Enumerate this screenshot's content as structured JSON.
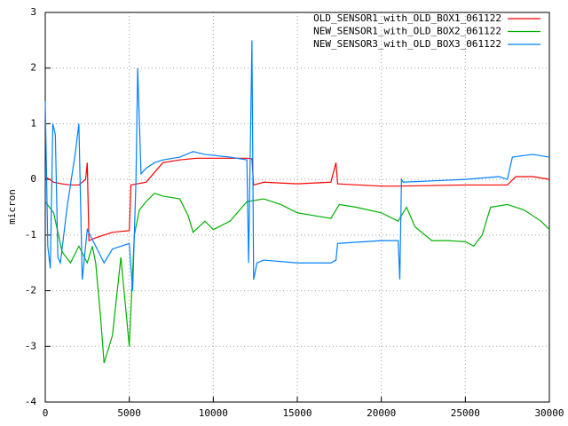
{
  "chart_data": {
    "type": "line",
    "ylabel": "micron",
    "xlim": [
      0,
      30000
    ],
    "xticks": [
      0,
      5000,
      10000,
      15000,
      20000,
      25000,
      30000
    ],
    "ylim": [
      -4,
      3
    ],
    "yticks": [
      -4,
      -3,
      -2,
      -1,
      0,
      1,
      2,
      3
    ],
    "grid": true,
    "legend": "top-right",
    "series": [
      {
        "name": "OLD_SENSOR1_with_OLD_BOX1_061122",
        "color": "#ff0000",
        "x": [
          0,
          500,
          1000,
          1500,
          2000,
          2400,
          2500,
          2600,
          3000,
          3500,
          4000,
          5000,
          5100,
          6000,
          7000,
          8000,
          9000,
          10000,
          11000,
          12000,
          12300,
          12400,
          13000,
          15000,
          17000,
          17300,
          17400,
          20000,
          21000,
          25000,
          27500,
          28000,
          29000,
          30000
        ],
        "values": [
          0.05,
          -0.05,
          -0.08,
          -0.1,
          -0.1,
          0.0,
          0.3,
          -1.1,
          -1.05,
          -1.0,
          -0.95,
          -0.92,
          -0.1,
          -0.05,
          0.3,
          0.35,
          0.38,
          0.38,
          0.38,
          0.38,
          0.37,
          -0.1,
          -0.05,
          -0.08,
          -0.05,
          0.3,
          -0.08,
          -0.12,
          -0.12,
          -0.1,
          -0.1,
          0.05,
          0.05,
          0.0
        ]
      },
      {
        "name": "NEW_SENSOR1_with_OLD_BOX2_061122",
        "color": "#00b000",
        "x": [
          0,
          500,
          1000,
          1500,
          2000,
          2500,
          2800,
          3000,
          3300,
          3500,
          4000,
          4500,
          5000,
          5300,
          5600,
          6000,
          6500,
          7000,
          8000,
          8500,
          8800,
          9500,
          10000,
          11000,
          12000,
          13000,
          14000,
          15000,
          16000,
          17000,
          17500,
          18500,
          20000,
          21000,
          21500,
          22000,
          23000,
          24000,
          25000,
          25500,
          26000,
          26500,
          27500,
          28500,
          29500,
          30000
        ],
        "values": [
          -0.4,
          -0.6,
          -1.3,
          -1.5,
          -1.2,
          -1.5,
          -1.2,
          -1.5,
          -2.5,
          -3.3,
          -2.8,
          -1.4,
          -3.0,
          -1.0,
          -0.55,
          -0.4,
          -0.25,
          -0.3,
          -0.35,
          -0.65,
          -0.95,
          -0.75,
          -0.9,
          -0.75,
          -0.4,
          -0.35,
          -0.45,
          -0.6,
          -0.65,
          -0.7,
          -0.45,
          -0.5,
          -0.6,
          -0.75,
          -0.5,
          -0.85,
          -1.1,
          -1.1,
          -1.12,
          -1.2,
          -1.0,
          -0.5,
          -0.45,
          -0.55,
          -0.75,
          -0.9
        ]
      },
      {
        "name": "NEW_SENSOR3_with_OLD_BOX3_061122",
        "color": "#0080ff",
        "x": [
          0,
          150,
          300,
          450,
          600,
          750,
          900,
          1300,
          1800,
          2000,
          2200,
          2500,
          3000,
          3500,
          4000,
          5000,
          5200,
          5400,
          5500,
          5700,
          6000,
          6500,
          7000,
          8000,
          8800,
          9500,
          11000,
          12000,
          12100,
          12300,
          12400,
          12600,
          13000,
          15000,
          17000,
          17300,
          17400,
          20000,
          21000,
          21100,
          21200,
          21300,
          25000,
          27000,
          27500,
          27800,
          29000,
          30000
        ],
        "values": [
          1.4,
          -1.2,
          -1.6,
          1.0,
          0.8,
          -1.4,
          -1.5,
          -0.5,
          0.5,
          1.0,
          -1.8,
          -0.9,
          -1.2,
          -1.5,
          -1.25,
          -1.15,
          -2.0,
          0.0,
          2.0,
          0.1,
          0.2,
          0.3,
          0.35,
          0.4,
          0.5,
          0.45,
          0.4,
          0.35,
          -1.5,
          2.5,
          -1.8,
          -1.5,
          -1.45,
          -1.5,
          -1.5,
          -1.45,
          -1.15,
          -1.1,
          -1.1,
          -1.8,
          0.0,
          -0.05,
          0.0,
          0.05,
          0.0,
          0.4,
          0.45,
          0.4
        ]
      }
    ]
  }
}
